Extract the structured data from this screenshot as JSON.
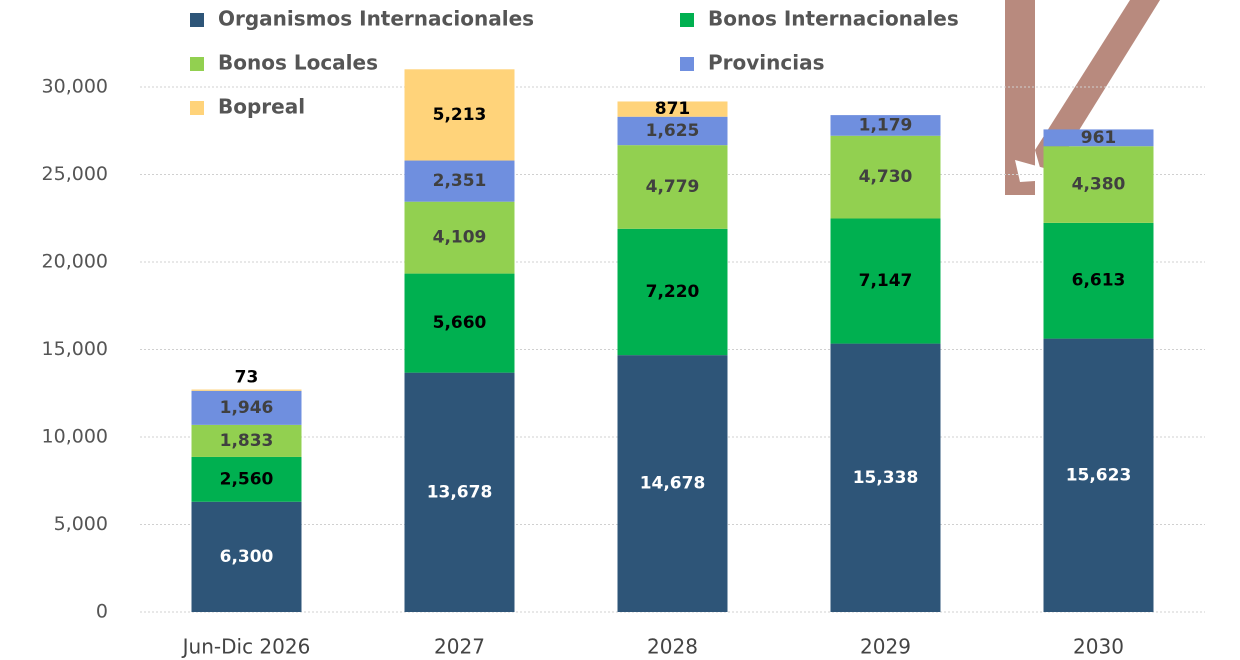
{
  "chart_data": {
    "type": "stacked_bar",
    "categories": [
      "Jun-Dic 2026",
      "2027",
      "2028",
      "2029",
      "2030"
    ],
    "ylim": [
      0,
      30000
    ],
    "yticks": [
      0,
      {
        "value": 5000,
        "label": "5,000"
      },
      {
        "value": 10000,
        "label": "10,000"
      },
      {
        "value": 15000,
        "label": "15,000"
      },
      {
        "value": 20000,
        "label": "20,000"
      },
      {
        "value": 25000,
        "label": "25,000"
      },
      {
        "value": 30000,
        "label": "30,000"
      }
    ],
    "grid": true,
    "series": [
      {
        "name": "Organismos Internacionales",
        "color": "#2e5578",
        "values": [
          6300,
          13678,
          14678,
          15338,
          15623
        ],
        "value_labels": [
          "6,300",
          "13,678",
          "14,678",
          "15,338",
          "15,623"
        ]
      },
      {
        "name": "Bonos Internacionales",
        "color": "#00b050",
        "values": [
          2560,
          5660,
          7220,
          7147,
          6613
        ],
        "value_labels": [
          "2,560",
          "5,660",
          "7,220",
          "7,147",
          "6,613"
        ]
      },
      {
        "name": "Bonos Locales",
        "color": "#92d050",
        "values": [
          1833,
          4109,
          4779,
          4730,
          4380
        ],
        "value_labels": [
          "1,833",
          "4,109",
          "4,779",
          "4,730",
          "4,380"
        ]
      },
      {
        "name": "Provincias",
        "color": "#6f8fdf",
        "values": [
          1946,
          2351,
          1625,
          1179,
          961
        ],
        "value_labels": [
          "1,946",
          "2,351",
          "1,625",
          "1,179",
          "961"
        ]
      },
      {
        "name": "Bopreal",
        "color": "#ffd37a",
        "values": [
          73,
          5213,
          871,
          null,
          null
        ],
        "value_labels": [
          "73",
          "5,213",
          "871",
          null,
          null
        ]
      }
    ]
  }
}
